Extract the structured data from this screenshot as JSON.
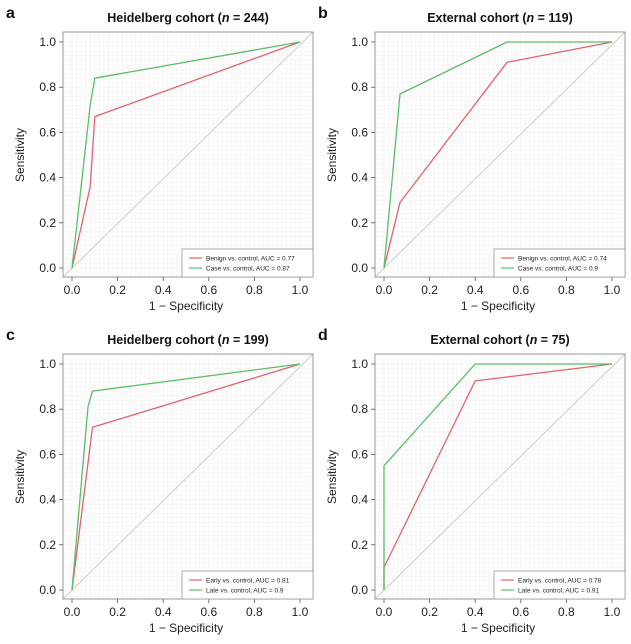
{
  "figure": {
    "colors": {
      "series_red": "#e0636e",
      "series_green": "#5cbd6b",
      "diagonal": "#cfcfcf",
      "frame": "#9a9a9a",
      "grid": "#f2f2f2"
    }
  },
  "chart_data": [
    {
      "type": "line",
      "panel_letter": "a",
      "title_prefix": "Heidelberg cohort (",
      "title_n_symbol": "n",
      "title_suffix": " = 244)",
      "xlabel": "1 − Specificity",
      "ylabel": "Sensitivity",
      "xlim": [
        0,
        1
      ],
      "ylim": [
        0,
        1
      ],
      "xticks": [
        "0.0",
        "0.2",
        "0.4",
        "0.6",
        "0.8",
        "1.0"
      ],
      "yticks": [
        "0.0",
        "0.2",
        "0.4",
        "0.6",
        "0.8",
        "1.0"
      ],
      "grid": true,
      "legend_position": "bottom-right",
      "reference_diagonal": true,
      "series": [
        {
          "name": "Benign vs. control, AUC = 0.77",
          "color": "#e0636e",
          "x": [
            0,
            0.08,
            0.1,
            1.0
          ],
          "y": [
            0,
            0.36,
            0.67,
            1.0
          ]
        },
        {
          "name": "Case vs. control, AUC = 0.87",
          "color": "#5cbd6b",
          "x": [
            0,
            0.08,
            0.1,
            1.0
          ],
          "y": [
            0,
            0.72,
            0.84,
            1.0
          ]
        }
      ]
    },
    {
      "type": "line",
      "panel_letter": "b",
      "title_prefix": "External cohort (",
      "title_n_symbol": "n",
      "title_suffix": " = 119)",
      "xlabel": "1 − Specificity",
      "ylabel": "Sensitivity",
      "xlim": [
        0,
        1
      ],
      "ylim": [
        0,
        1
      ],
      "xticks": [
        "0.0",
        "0.2",
        "0.4",
        "0.6",
        "0.8",
        "1.0"
      ],
      "yticks": [
        "0.0",
        "0.2",
        "0.4",
        "0.6",
        "0.8",
        "1.0"
      ],
      "grid": true,
      "legend_position": "bottom-right",
      "reference_diagonal": true,
      "series": [
        {
          "name": "Benign vs. control, AUC = 0.74",
          "color": "#e0636e",
          "x": [
            0,
            0.07,
            0.54,
            1.0
          ],
          "y": [
            0,
            0.29,
            0.91,
            1.0
          ]
        },
        {
          "name": "Case vs. control, AUC = 0.9",
          "color": "#5cbd6b",
          "x": [
            0,
            0.07,
            0.54,
            1.0
          ],
          "y": [
            0,
            0.77,
            1.0,
            1.0
          ]
        }
      ]
    },
    {
      "type": "line",
      "panel_letter": "c",
      "title_prefix": "Heidelberg cohort (",
      "title_n_symbol": "n",
      "title_suffix": " = 199)",
      "xlabel": "1 − Specificity",
      "ylabel": "Sensitivity",
      "xlim": [
        0,
        1
      ],
      "ylim": [
        0,
        1
      ],
      "xticks": [
        "0.0",
        "0.2",
        "0.4",
        "0.6",
        "0.8",
        "1.0"
      ],
      "yticks": [
        "0.0",
        "0.2",
        "0.4",
        "0.6",
        "0.8",
        "1.0"
      ],
      "grid": true,
      "legend_position": "bottom-right",
      "reference_diagonal": true,
      "series": [
        {
          "name": "Early vs. control, AUC = 0.81",
          "color": "#e0636e",
          "x": [
            0,
            0.09,
            1.0
          ],
          "y": [
            0,
            0.72,
            1.0
          ]
        },
        {
          "name": "Late vs. control, AUC = 0.9",
          "color": "#5cbd6b",
          "x": [
            0,
            0.07,
            0.09,
            1.0
          ],
          "y": [
            0,
            0.81,
            0.88,
            1.0
          ]
        }
      ]
    },
    {
      "type": "line",
      "panel_letter": "d",
      "title_prefix": "External cohort (",
      "title_n_symbol": "n",
      "title_suffix": " = 75)",
      "xlabel": "1 − Specificity",
      "ylabel": "Sensitivity",
      "xlim": [
        0,
        1
      ],
      "ylim": [
        0,
        1
      ],
      "xticks": [
        "0.0",
        "0.2",
        "0.4",
        "0.6",
        "0.8",
        "1.0"
      ],
      "yticks": [
        "0.0",
        "0.2",
        "0.4",
        "0.6",
        "0.8",
        "1.0"
      ],
      "grid": true,
      "legend_position": "bottom-right",
      "reference_diagonal": true,
      "series": [
        {
          "name": "Early vs. control, AUC = 0.78",
          "color": "#e0636e",
          "x": [
            0,
            0,
            0.4,
            1.0
          ],
          "y": [
            0,
            0.1,
            0.925,
            1.0
          ]
        },
        {
          "name": "Late vs. control, AUC = 0.91",
          "color": "#5cbd6b",
          "x": [
            0,
            0,
            0.4,
            1.0
          ],
          "y": [
            0,
            0.55,
            1.0,
            1.0
          ]
        }
      ]
    }
  ]
}
